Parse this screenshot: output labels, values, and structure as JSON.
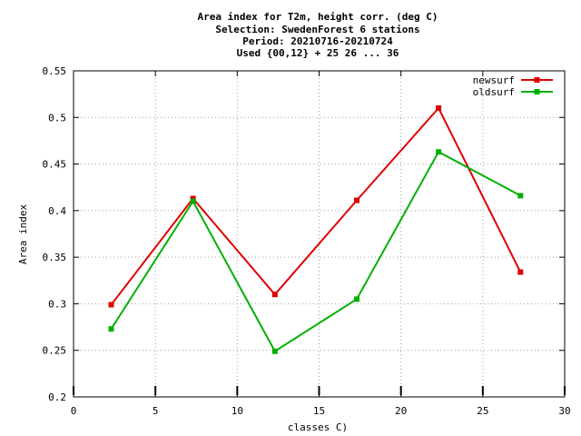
{
  "chart_data": {
    "type": "line",
    "title_lines": [
      "Area index  for T2m, height corr. (deg C)",
      "Selection: SwedenForest      6 stations",
      "Period: 20210716-20210724",
      "Used {00,12} + 25 26 ... 36"
    ],
    "xlabel": "classes C)",
    "ylabel": "Area index",
    "xlim": [
      0,
      30
    ],
    "ylim": [
      0.2,
      0.55
    ],
    "xticks": [
      0,
      5,
      10,
      15,
      20,
      25,
      30
    ],
    "yticks": [
      0.2,
      0.25,
      0.3,
      0.35,
      0.4,
      0.45,
      0.5,
      0.55
    ],
    "xtick_labels": [
      "0",
      "5",
      "10",
      "15",
      "20",
      "25",
      "30"
    ],
    "ytick_labels": [
      "0.2",
      "0.25",
      "0.3",
      "0.35",
      "0.4",
      "0.45",
      "0.5",
      "0.55"
    ],
    "grid": true,
    "legend_position": "top-right",
    "series": [
      {
        "name": "newsurf",
        "color": "#e00000",
        "x": [
          2.3,
          7.3,
          12.3,
          17.3,
          22.3,
          27.3
        ],
        "y": [
          0.299,
          0.413,
          0.31,
          0.411,
          0.51,
          0.334
        ]
      },
      {
        "name": "oldsurf",
        "color": "#00b000",
        "x": [
          2.3,
          7.3,
          12.3,
          17.3,
          22.3,
          27.3
        ],
        "y": [
          0.273,
          0.41,
          0.249,
          0.305,
          0.463,
          0.416
        ]
      }
    ]
  }
}
